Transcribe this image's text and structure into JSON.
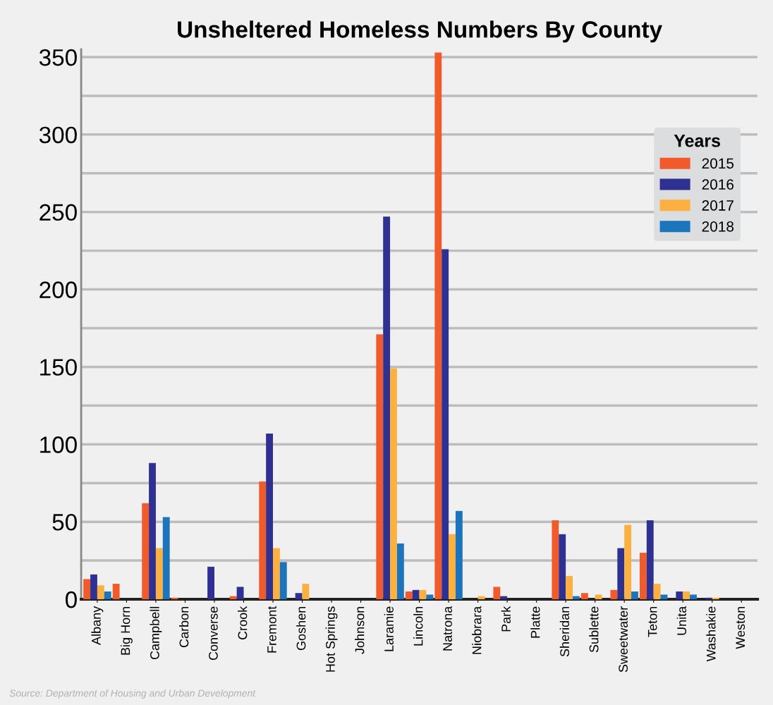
{
  "chart_data": {
    "type": "bar",
    "title": "Unsheltered Homeless Numbers By County",
    "categories": [
      "Albany",
      "Big Horn",
      "Campbell",
      "Carbon",
      "Converse",
      "Crook",
      "Fremont",
      "Goshen",
      "Hot Springs",
      "Johnson",
      "Laramie",
      "Lincoln",
      "Natrona",
      "Niobrara",
      "Park",
      "Platte",
      "Sheridan",
      "Sublette",
      "Sweetwater",
      "Teton",
      "Unita",
      "Washakie",
      "Weston"
    ],
    "series": [
      {
        "name": "2015",
        "color": "#f15a2b",
        "values": [
          13,
          10,
          62,
          1,
          0,
          2,
          76,
          0,
          0,
          0,
          171,
          5,
          353,
          0,
          8,
          0,
          51,
          4,
          6,
          30,
          0,
          0,
          0
        ]
      },
      {
        "name": "2016",
        "color": "#2e3192",
        "values": [
          16,
          0,
          88,
          0,
          21,
          8,
          107,
          4,
          0,
          0,
          247,
          6,
          226,
          0,
          2,
          0,
          42,
          0,
          33,
          51,
          5,
          1,
          0
        ]
      },
      {
        "name": "2017",
        "color": "#fbb040",
        "values": [
          9,
          0,
          33,
          0,
          0,
          0,
          33,
          10,
          0,
          0,
          149,
          6,
          42,
          2,
          0,
          0,
          15,
          3,
          48,
          10,
          5,
          1,
          0
        ]
      },
      {
        "name": "2018",
        "color": "#1c75bc",
        "values": [
          5,
          0,
          53,
          0,
          0,
          0,
          24,
          0,
          0,
          0,
          36,
          3,
          57,
          0,
          0,
          0,
          2,
          0,
          5,
          3,
          3,
          0,
          0
        ]
      }
    ],
    "ylim": [
      0,
      355
    ],
    "yticks": [
      0,
      {
        "value": 25,
        "label": null
      },
      50,
      {
        "value": 75,
        "label": null
      },
      100,
      {
        "value": 125,
        "label": null
      },
      150,
      {
        "value": 175,
        "label": null
      },
      200,
      {
        "value": 225,
        "label": null
      },
      250,
      {
        "value": 275,
        "label": null
      },
      300,
      {
        "value": 325,
        "label": null
      },
      350
    ],
    "grid": "y",
    "legend": "top right",
    "legend_title": "Years",
    "annotations": [
      "Source: Department of Housing and Urban Development"
    ]
  }
}
